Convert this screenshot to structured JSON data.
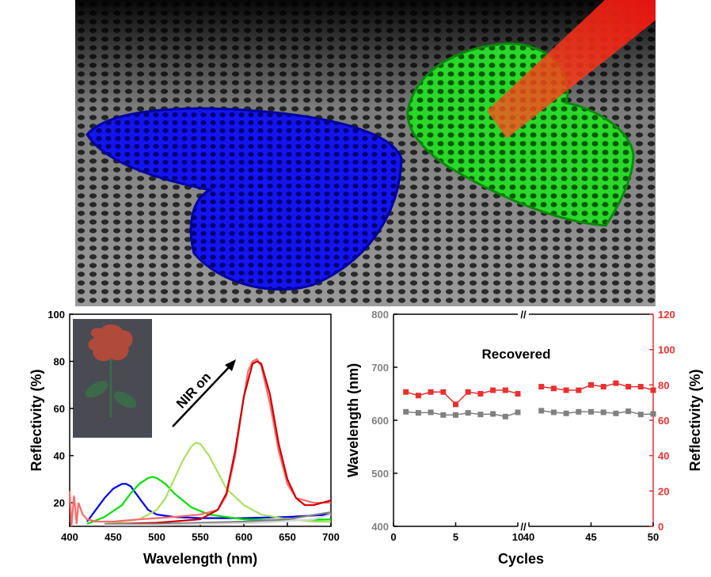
{
  "illustration": {
    "colors": {
      "background": "#1c1c1c",
      "mesh": "#8a8a8a",
      "blue_film": "#1010ee",
      "green_film": "#22cc22",
      "laser": "#ff2a2a"
    },
    "icons": [
      "perforated-substrate",
      "blue-heart-half",
      "green-heart-half",
      "nir-laser-beam"
    ]
  },
  "chart_data": [
    {
      "type": "line",
      "xlabel": "Wavelength (nm)",
      "ylabel": "Reflectivity (%)",
      "xlim": [
        400,
        700
      ],
      "ylim": [
        10,
        100
      ],
      "xticks": [
        400,
        450,
        500,
        550,
        600,
        650,
        700
      ],
      "yticks": [
        20,
        40,
        60,
        80,
        100
      ],
      "annotation": "NIR on",
      "inset": {
        "description": "photo of rose pattern",
        "colors": [
          "#b04a3a",
          "#3a6a48",
          "#4a4a52"
        ]
      },
      "series": [
        {
          "color": "#0000ee",
          "x": [
            420,
            430,
            440,
            450,
            460,
            465,
            470,
            480,
            490,
            500,
            520,
            550,
            600,
            650,
            700
          ],
          "y": [
            12,
            17,
            22,
            26,
            28,
            28,
            27,
            22,
            17,
            15,
            14,
            13.5,
            13.5,
            14,
            15
          ]
        },
        {
          "color": "#00e000",
          "x": [
            420,
            440,
            460,
            470,
            480,
            490,
            495,
            500,
            510,
            520,
            540,
            560,
            600,
            650,
            700
          ],
          "y": [
            11,
            14,
            19,
            24,
            28,
            30.5,
            31,
            30.5,
            28,
            24,
            18,
            15,
            13,
            12.5,
            13
          ]
        },
        {
          "color": "#a8e060",
          "x": [
            440,
            480,
            500,
            510,
            520,
            530,
            540,
            545,
            550,
            560,
            570,
            580,
            600,
            620,
            650,
            680,
            700
          ],
          "y": [
            11,
            13,
            17,
            22,
            30,
            38,
            44,
            45.5,
            45,
            40,
            33,
            26,
            19,
            15,
            13,
            12,
            12
          ]
        },
        {
          "color": "#ff6a6a",
          "x": [
            400,
            402,
            405,
            408,
            410,
            415,
            420,
            430,
            450,
            480,
            520,
            550,
            570,
            580,
            590,
            600,
            605,
            610,
            615,
            620,
            630,
            640,
            650,
            660,
            670,
            680,
            690,
            700
          ],
          "y": [
            25,
            10,
            23,
            11,
            20,
            15,
            13,
            12,
            12,
            13,
            14,
            15,
            17,
            23,
            40,
            65,
            76,
            80,
            81,
            78,
            62,
            42,
            28,
            22,
            21,
            20,
            20,
            20
          ]
        },
        {
          "color": "#cc0000",
          "x": [
            450,
            500,
            550,
            570,
            580,
            590,
            600,
            610,
            615,
            620,
            630,
            640,
            650,
            660,
            670,
            680,
            690,
            700
          ],
          "y": [
            11,
            11.5,
            13,
            17,
            24,
            42,
            65,
            79,
            80,
            79,
            66,
            45,
            30,
            22,
            19,
            19,
            20,
            21
          ]
        },
        {
          "color": "#808080",
          "x": [
            440,
            470,
            500,
            550,
            600,
            650,
            700
          ],
          "y": [
            11,
            11,
            11,
            11.5,
            12,
            13,
            16
          ]
        },
        {
          "color": "#d8d8d8",
          "x": [
            440,
            500,
            560,
            620,
            680,
            700
          ],
          "y": [
            10.5,
            10.5,
            11,
            11.5,
            13,
            15
          ]
        }
      ]
    },
    {
      "type": "scatter",
      "xlabel": "Cycles",
      "ylabel": "Wavelength (nm)",
      "ylabel_right": "Reflectivity (%)",
      "title": "Recovered",
      "ylim": [
        400,
        800
      ],
      "ylim_right": [
        0,
        120
      ],
      "xticks": [
        0,
        5,
        10,
        40,
        45,
        50
      ],
      "yticks": [
        400,
        500,
        600,
        700,
        800
      ],
      "yticks_right": [
        0,
        20,
        40,
        60,
        80,
        100,
        120
      ],
      "axis_break": "//",
      "series": [
        {
          "axis": "left",
          "color": "#808080",
          "segments": [
            {
              "x": [
                1,
                2,
                3,
                4,
                5,
                6,
                7,
                8,
                9,
                10
              ],
              "y": [
                616,
                614,
                615,
                610,
                610,
                614,
                611,
                612,
                607,
                615
              ]
            },
            {
              "x": [
                41,
                42,
                43,
                44,
                45,
                46,
                47,
                48,
                49,
                50
              ],
              "y": [
                618,
                615,
                613,
                616,
                616,
                615,
                613,
                617,
                611,
                612
              ]
            }
          ]
        },
        {
          "axis": "right",
          "color": "#e83030",
          "segments": [
            {
              "x": [
                1,
                2,
                3,
                4,
                5,
                6,
                7,
                8,
                9,
                10
              ],
              "y": [
                76,
                74,
                76,
                76,
                69,
                76,
                75,
                77,
                77,
                75
              ]
            },
            {
              "x": [
                41,
                42,
                43,
                44,
                45,
                46,
                47,
                48,
                49,
                50
              ],
              "y": [
                79,
                78,
                77,
                77,
                80,
                79,
                81,
                79,
                79,
                77
              ]
            }
          ]
        }
      ]
    }
  ]
}
